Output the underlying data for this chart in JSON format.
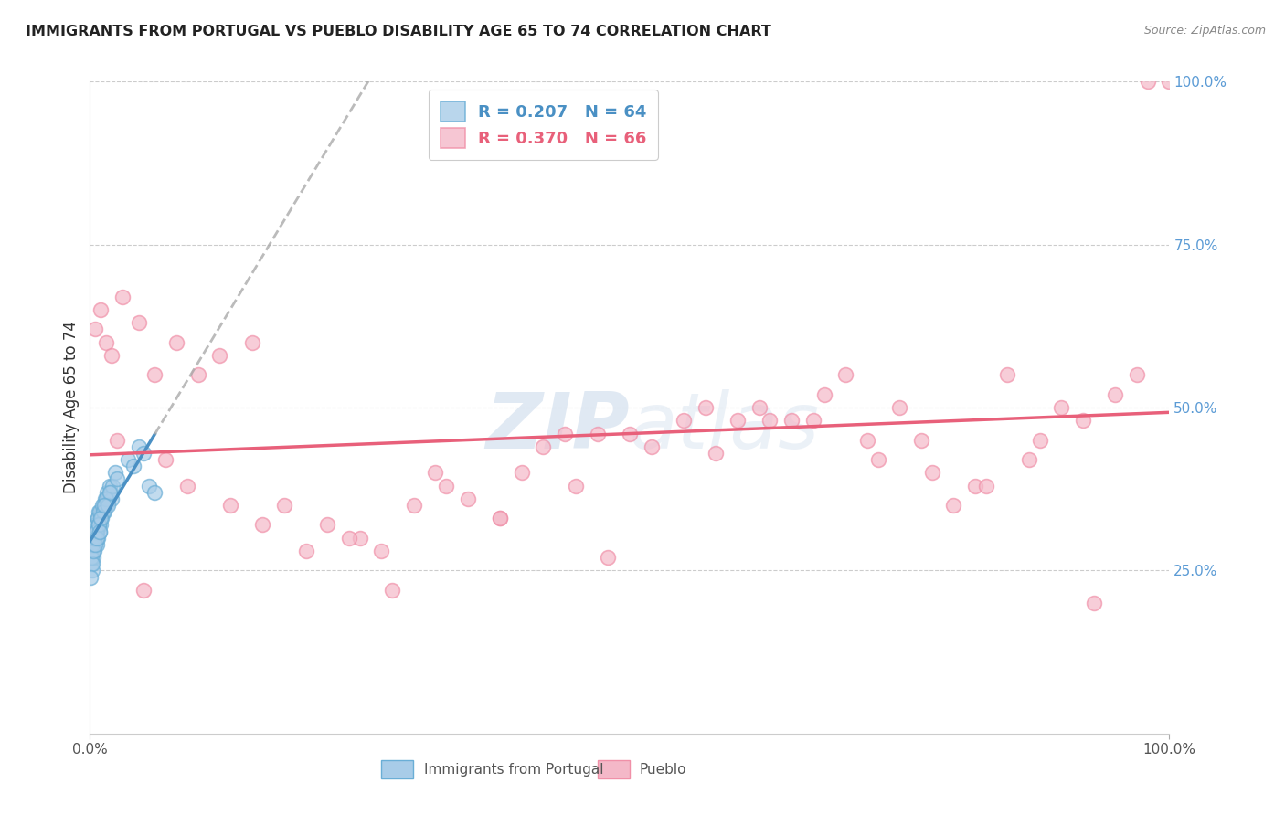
{
  "title": "IMMIGRANTS FROM PORTUGAL VS PUEBLO DISABILITY AGE 65 TO 74 CORRELATION CHART",
  "source": "Source: ZipAtlas.com",
  "ylabel": "Disability Age 65 to 74",
  "r_blue": 0.207,
  "n_blue": 64,
  "r_pink": 0.37,
  "n_pink": 66,
  "legend_label_blue": "Immigrants from Portugal",
  "legend_label_pink": "Pueblo",
  "blue_color": "#a8cce8",
  "pink_color": "#f4b8c8",
  "blue_edge_color": "#6aaed6",
  "pink_edge_color": "#f090a8",
  "blue_line_color": "#4a90c4",
  "pink_line_color": "#e8607a",
  "right_tick_color": "#5b9bd5",
  "title_color": "#222222",
  "source_color": "#888888",
  "watermark_color": "#c8d8ea",
  "xlim": [
    0,
    100
  ],
  "ylim": [
    0,
    100
  ],
  "ytick_positions": [
    25,
    50,
    75,
    100
  ],
  "ytick_labels": [
    "25.0%",
    "50.0%",
    "75.0%",
    "100.0%"
  ],
  "blue_x": [
    0.1,
    0.15,
    0.2,
    0.25,
    0.3,
    0.35,
    0.4,
    0.45,
    0.5,
    0.55,
    0.6,
    0.65,
    0.7,
    0.75,
    0.8,
    0.85,
    0.9,
    0.95,
    1.0,
    1.1,
    1.2,
    1.3,
    1.4,
    1.5,
    1.6,
    1.7,
    1.8,
    1.9,
    2.0,
    2.1,
    2.3,
    2.5,
    0.12,
    0.18,
    0.22,
    0.28,
    0.32,
    0.42,
    0.52,
    0.62,
    0.72,
    0.82,
    0.92,
    1.05,
    1.15,
    1.25,
    1.45,
    1.65,
    1.85,
    0.08,
    0.38,
    0.58,
    0.78,
    0.98,
    1.35,
    0.48,
    0.68,
    0.88,
    3.5,
    4.0,
    4.5,
    5.0,
    5.5,
    6.0
  ],
  "blue_y": [
    28,
    26,
    25,
    30,
    27,
    29,
    28,
    31,
    30,
    32,
    29,
    31,
    33,
    30,
    32,
    34,
    31,
    33,
    32,
    34,
    35,
    34,
    36,
    35,
    37,
    36,
    38,
    37,
    36,
    38,
    40,
    39,
    27,
    26,
    29,
    28,
    31,
    30,
    32,
    31,
    33,
    32,
    34,
    33,
    35,
    34,
    36,
    35,
    37,
    24,
    30,
    31,
    32,
    33,
    35,
    29,
    30,
    31,
    42,
    41,
    44,
    43,
    38,
    37
  ],
  "pink_x": [
    0.5,
    1.0,
    1.5,
    2.0,
    3.0,
    4.5,
    6.0,
    8.0,
    10.0,
    12.0,
    15.0,
    18.0,
    20.0,
    22.0,
    25.0,
    28.0,
    30.0,
    33.0,
    35.0,
    38.0,
    40.0,
    42.0,
    45.0,
    48.0,
    50.0,
    55.0,
    58.0,
    60.0,
    62.0,
    65.0,
    68.0,
    70.0,
    72.0,
    75.0,
    78.0,
    80.0,
    82.0,
    85.0,
    88.0,
    90.0,
    92.0,
    95.0,
    98.0,
    100.0,
    2.5,
    5.0,
    7.0,
    9.0,
    13.0,
    16.0,
    24.0,
    32.0,
    44.0,
    52.0,
    63.0,
    73.0,
    83.0,
    93.0,
    27.0,
    38.0,
    47.0,
    57.0,
    67.0,
    77.0,
    87.0,
    97.0
  ],
  "pink_y": [
    62,
    65,
    60,
    58,
    67,
    63,
    55,
    60,
    55,
    58,
    60,
    35,
    28,
    32,
    30,
    22,
    35,
    38,
    36,
    33,
    40,
    44,
    38,
    27,
    46,
    48,
    43,
    48,
    50,
    48,
    52,
    55,
    45,
    50,
    40,
    35,
    38,
    55,
    45,
    50,
    48,
    52,
    100,
    100,
    45,
    22,
    42,
    38,
    35,
    32,
    30,
    40,
    46,
    44,
    48,
    42,
    38,
    20,
    28,
    33,
    46,
    50,
    48,
    45,
    42,
    55
  ]
}
